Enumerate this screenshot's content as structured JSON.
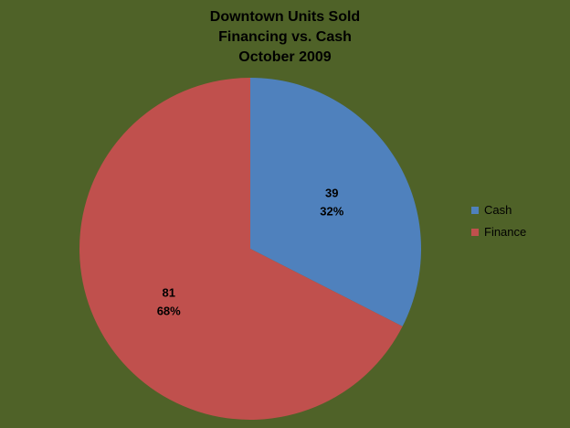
{
  "chart_data": {
    "type": "pie",
    "title_lines": [
      "Downtown Units Sold",
      "Financing vs. Cash",
      "October 2009"
    ],
    "categories": [
      "Cash",
      "Finance"
    ],
    "values": [
      39,
      81
    ],
    "percent_labels": [
      "32%",
      "68%"
    ],
    "colors": [
      "#4f81bd",
      "#c0504d"
    ],
    "start_angle_deg": 0,
    "direction": "clockwise",
    "legend_position": "right",
    "background": "#4f6228"
  }
}
